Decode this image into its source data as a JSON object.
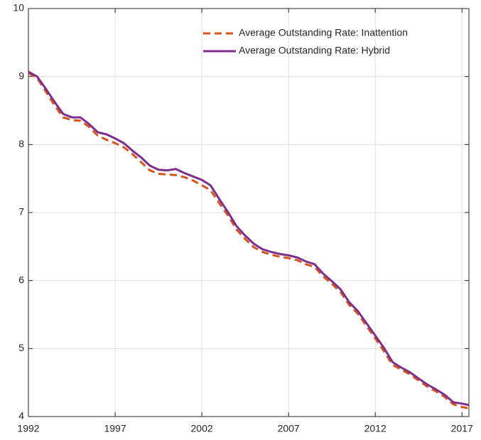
{
  "chart_data": {
    "type": "line",
    "x": [
      1992,
      1992.5,
      1993,
      1993.5,
      1994,
      1994.5,
      1995,
      1995.5,
      1996,
      1996.5,
      1997,
      1997.5,
      1998,
      1998.5,
      1999,
      1999.5,
      2000,
      2000.5,
      2001,
      2001.5,
      2002,
      2002.5,
      2003,
      2003.5,
      2004,
      2004.5,
      2005,
      2005.5,
      2006,
      2006.5,
      2007,
      2007.5,
      2008,
      2008.5,
      2009,
      2009.5,
      2010,
      2010.5,
      2011,
      2011.5,
      2012,
      2012.5,
      2013,
      2013.5,
      2014,
      2014.5,
      2015,
      2015.5,
      2016,
      2016.5,
      2017,
      2017.4
    ],
    "series": [
      {
        "name": "Average Outstanding Rate: Inattention",
        "color": "#D95319",
        "dashed": true,
        "values": [
          9.05,
          8.98,
          8.78,
          8.58,
          8.4,
          8.36,
          8.35,
          8.26,
          8.13,
          8.07,
          8.02,
          7.96,
          7.86,
          7.74,
          7.62,
          7.57,
          7.56,
          7.55,
          7.52,
          7.47,
          7.4,
          7.33,
          7.14,
          6.96,
          6.75,
          6.61,
          6.49,
          6.42,
          6.38,
          6.35,
          6.33,
          6.3,
          6.24,
          6.2,
          6.06,
          5.95,
          5.83,
          5.64,
          5.51,
          5.33,
          5.15,
          4.96,
          4.76,
          4.69,
          4.62,
          4.53,
          4.44,
          4.37,
          4.29,
          4.18,
          4.14,
          4.12
        ]
      },
      {
        "name": "Average Outstanding Rate: Hybrid",
        "color": "#7E2F8E",
        "dashed": false,
        "values": [
          9.07,
          9.0,
          8.82,
          8.63,
          8.45,
          8.4,
          8.4,
          8.3,
          8.18,
          8.15,
          8.09,
          8.02,
          7.91,
          7.81,
          7.69,
          7.63,
          7.62,
          7.64,
          7.58,
          7.53,
          7.48,
          7.4,
          7.2,
          7.01,
          6.8,
          6.66,
          6.54,
          6.46,
          6.42,
          6.39,
          6.37,
          6.34,
          6.28,
          6.24,
          6.1,
          5.99,
          5.87,
          5.68,
          5.55,
          5.37,
          5.19,
          5.01,
          4.8,
          4.72,
          4.65,
          4.56,
          4.47,
          4.4,
          4.32,
          4.21,
          4.19,
          4.17
        ]
      }
    ],
    "xlim": [
      1992,
      2017.4
    ],
    "xticks": [
      1992,
      1997,
      2002,
      2007,
      2012,
      2017
    ],
    "ylim": [
      4,
      10
    ],
    "yticks": [
      4,
      5,
      6,
      7,
      8,
      9,
      10
    ],
    "grid": true,
    "legend": "top-right"
  }
}
